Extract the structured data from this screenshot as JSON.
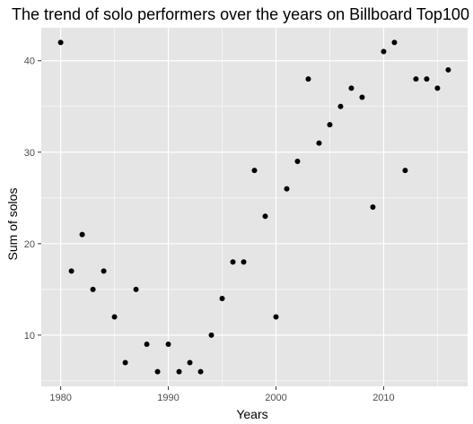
{
  "chart_data": {
    "type": "scatter",
    "title": "The trend of solo performers over the years on Billboard Top100",
    "xlabel": "Years",
    "ylabel": "Sum of solos",
    "xlim": [
      1978.2,
      2017.8
    ],
    "ylim": [
      4.4,
      43.6
    ],
    "x_ticks": [
      1980,
      1990,
      2000,
      2010
    ],
    "y_ticks": [
      10,
      20,
      30,
      40
    ],
    "grid": true,
    "legend": "none",
    "colors": {
      "panel": "#e5e5e5",
      "grid": "#ffffff",
      "point": "#000000"
    },
    "points": [
      {
        "x": 1980,
        "y": 42
      },
      {
        "x": 1981,
        "y": 17
      },
      {
        "x": 1982,
        "y": 21
      },
      {
        "x": 1983,
        "y": 15
      },
      {
        "x": 1984,
        "y": 17
      },
      {
        "x": 1985,
        "y": 12
      },
      {
        "x": 1986,
        "y": 7
      },
      {
        "x": 1987,
        "y": 15
      },
      {
        "x": 1988,
        "y": 9
      },
      {
        "x": 1989,
        "y": 6
      },
      {
        "x": 1990,
        "y": 9
      },
      {
        "x": 1991,
        "y": 6
      },
      {
        "x": 1992,
        "y": 7
      },
      {
        "x": 1993,
        "y": 6
      },
      {
        "x": 1994,
        "y": 10
      },
      {
        "x": 1995,
        "y": 14
      },
      {
        "x": 1996,
        "y": 18
      },
      {
        "x": 1997,
        "y": 18
      },
      {
        "x": 1998,
        "y": 28
      },
      {
        "x": 1999,
        "y": 23
      },
      {
        "x": 2000,
        "y": 12
      },
      {
        "x": 2001,
        "y": 26
      },
      {
        "x": 2002,
        "y": 29
      },
      {
        "x": 2003,
        "y": 38
      },
      {
        "x": 2004,
        "y": 31
      },
      {
        "x": 2005,
        "y": 33
      },
      {
        "x": 2006,
        "y": 35
      },
      {
        "x": 2007,
        "y": 37
      },
      {
        "x": 2008,
        "y": 36
      },
      {
        "x": 2009,
        "y": 24
      },
      {
        "x": 2010,
        "y": 41
      },
      {
        "x": 2011,
        "y": 42
      },
      {
        "x": 2012,
        "y": 28
      },
      {
        "x": 2013,
        "y": 38
      },
      {
        "x": 2014,
        "y": 38
      },
      {
        "x": 2015,
        "y": 37
      },
      {
        "x": 2016,
        "y": 39
      }
    ]
  }
}
